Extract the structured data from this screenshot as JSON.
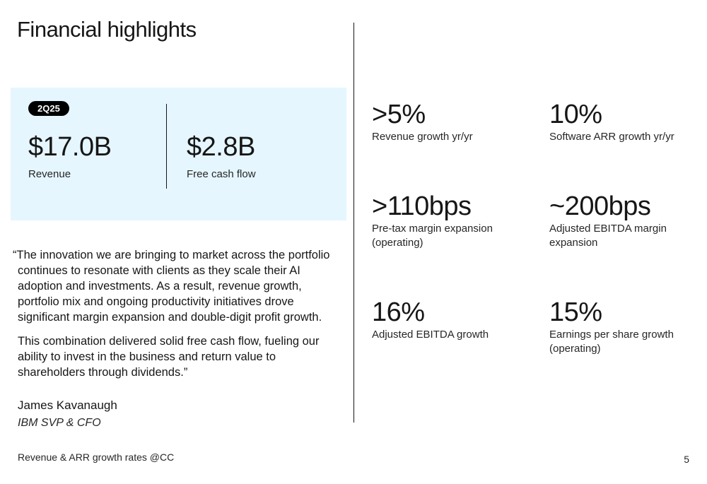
{
  "title": "Financial highlights",
  "panel": {
    "badge": "2Q25",
    "metrics": [
      {
        "value": "$17.0B",
        "label": "Revenue"
      },
      {
        "value": "$2.8B",
        "label": "Free cash flow"
      }
    ]
  },
  "quote": {
    "paragraph1": "“The innovation we are bringing to market across the portfolio continues to resonate with clients as they scale their AI adoption and investments. As a result, revenue growth, portfolio mix and ongoing productivity initiatives drove significant margin expansion and double-digit profit growth.",
    "paragraph2": "This combination delivered solid free cash flow, fueling our ability to invest in the business and return value to shareholders through dividends.”",
    "author_name": "James Kavanaugh",
    "author_title": "IBM SVP & CFO"
  },
  "stats": [
    {
      "value": ">5%",
      "label": "Revenue growth yr/yr"
    },
    {
      "value": "10%",
      "label": "Software ARR growth yr/yr"
    },
    {
      "value": ">110bps",
      "label": "Pre-tax margin expansion (operating)"
    },
    {
      "value": "~200bps",
      "label": "Adjusted EBITDA margin expansion"
    },
    {
      "value": "16%",
      "label": "Adjusted EBITDA growth"
    },
    {
      "value": "15%",
      "label": "Earnings per share growth (operating)"
    }
  ],
  "footnote": "Revenue & ARR growth rates @CC",
  "page_number": "5"
}
